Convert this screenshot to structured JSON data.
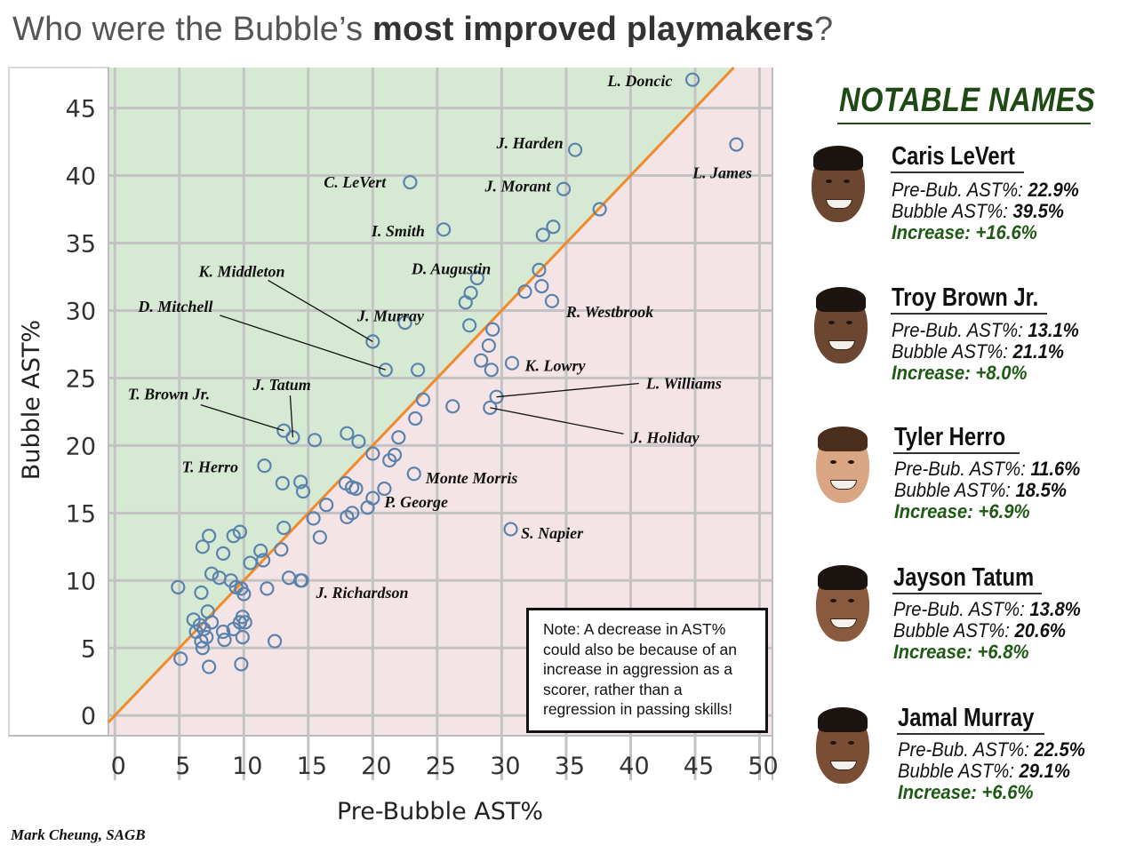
{
  "title": {
    "prefix": "Who were the Bubble’s ",
    "bold": "most improved playmakers",
    "suffix": "?"
  },
  "credit": "Mark Cheung, SAGB",
  "note": "Note: A decrease in AST% could also be because of an increase in aggression as a scorer, rather than a regression in passing skills!",
  "sidebar": {
    "title": "NOTABLE NAMES",
    "players": [
      {
        "name": "Caris LeVert",
        "pre_label": "Pre-Bub. AST%:",
        "pre": "22.9%",
        "bub_label": "Bubble AST%:",
        "bub": "39.5%",
        "inc_label": "Increase:",
        "inc": "+16.6%"
      },
      {
        "name": "Troy Brown Jr.",
        "pre_label": "Pre-Bub. AST%:",
        "pre": "13.1%",
        "bub_label": "Bubble AST%:",
        "bub": "21.1%",
        "inc_label": "Increase:",
        "inc": "+8.0%"
      },
      {
        "name": "Tyler Herro",
        "pre_label": "Pre-Bub. AST%:",
        "pre": "11.6%",
        "bub_label": "Bubble AST%:",
        "bub": "18.5%",
        "inc_label": "Increase:",
        "inc": "+6.9%"
      },
      {
        "name": "Jayson Tatum",
        "pre_label": "Pre-Bub. AST%:",
        "pre": "13.8%",
        "bub_label": "Bubble AST%:",
        "bub": "20.6%",
        "inc_label": "Increase:",
        "inc": "+6.8%"
      },
      {
        "name": "Jamal Murray",
        "pre_label": "Pre-Bub. AST%:",
        "pre": "22.5%",
        "bub_label": "Bubble AST%:",
        "bub": "29.1%",
        "inc_label": "Increase:",
        "inc": "+6.6%"
      }
    ]
  },
  "chart_data": {
    "type": "scatter",
    "xlabel": "Pre-Bubble AST%",
    "ylabel": "Bubble AST%",
    "xlim": [
      -0.5,
      51
    ],
    "ylim": [
      -1.5,
      48
    ],
    "xticks": [
      0,
      5,
      10,
      15,
      20,
      25,
      30,
      35,
      40,
      45,
      50
    ],
    "yticks": [
      0,
      5,
      10,
      15,
      20,
      25,
      30,
      35,
      40,
      45
    ],
    "grid": true,
    "reference_line": "y = x",
    "colors": {
      "above": "#d6ead3",
      "below": "#f5e4e6",
      "line": "#f08a2a",
      "marker": "#5a82ad",
      "grid": "#c3c3c3"
    },
    "points": [
      [
        44.8,
        47.1
      ],
      [
        48.2,
        42.3
      ],
      [
        35.7,
        41.9
      ],
      [
        34.8,
        39.0
      ],
      [
        37.6,
        37.5
      ],
      [
        22.9,
        39.5
      ],
      [
        25.5,
        36.0
      ],
      [
        34.0,
        36.2
      ],
      [
        33.2,
        35.6
      ],
      [
        32.9,
        33.0
      ],
      [
        28.1,
        32.4
      ],
      [
        27.6,
        31.3
      ],
      [
        27.2,
        30.6
      ],
      [
        31.8,
        31.4
      ],
      [
        33.1,
        31.8
      ],
      [
        33.9,
        30.7
      ],
      [
        22.5,
        29.1
      ],
      [
        27.5,
        28.9
      ],
      [
        29.3,
        28.6
      ],
      [
        29.0,
        27.4
      ],
      [
        20.0,
        27.7
      ],
      [
        28.4,
        26.3
      ],
      [
        30.8,
        26.1
      ],
      [
        29.2,
        25.6
      ],
      [
        21.0,
        25.6
      ],
      [
        23.5,
        25.6
      ],
      [
        23.9,
        23.4
      ],
      [
        26.2,
        22.9
      ],
      [
        29.6,
        23.6
      ],
      [
        29.1,
        22.8
      ],
      [
        23.3,
        22.0
      ],
      [
        13.1,
        21.1
      ],
      [
        13.8,
        20.6
      ],
      [
        15.5,
        20.4
      ],
      [
        18.0,
        20.9
      ],
      [
        18.9,
        20.3
      ],
      [
        22.0,
        20.6
      ],
      [
        20.0,
        19.4
      ],
      [
        21.7,
        19.3
      ],
      [
        21.3,
        18.9
      ],
      [
        11.6,
        18.5
      ],
      [
        23.2,
        17.9
      ],
      [
        14.4,
        17.3
      ],
      [
        13.0,
        17.2
      ],
      [
        14.6,
        16.6
      ],
      [
        17.9,
        17.2
      ],
      [
        18.4,
        16.9
      ],
      [
        18.7,
        16.8
      ],
      [
        20.9,
        16.8
      ],
      [
        20.0,
        16.1
      ],
      [
        16.4,
        15.6
      ],
      [
        19.6,
        15.4
      ],
      [
        18.4,
        15.0
      ],
      [
        18.0,
        14.7
      ],
      [
        15.4,
        14.6
      ],
      [
        13.1,
        13.9
      ],
      [
        15.9,
        13.2
      ],
      [
        30.7,
        13.8
      ],
      [
        9.7,
        13.6
      ],
      [
        9.2,
        13.3
      ],
      [
        7.3,
        13.3
      ],
      [
        6.8,
        12.5
      ],
      [
        8.4,
        12.0
      ],
      [
        11.3,
        12.2
      ],
      [
        12.9,
        12.3
      ],
      [
        10.5,
        11.3
      ],
      [
        11.5,
        11.5
      ],
      [
        7.5,
        10.5
      ],
      [
        8.1,
        10.2
      ],
      [
        9.0,
        10.0
      ],
      [
        13.5,
        10.2
      ],
      [
        14.5,
        10.0
      ],
      [
        14.4,
        10.0
      ],
      [
        4.9,
        9.5
      ],
      [
        6.7,
        9.1
      ],
      [
        9.4,
        9.5
      ],
      [
        10.0,
        9.0
      ],
      [
        9.8,
        9.4
      ],
      [
        11.8,
        9.4
      ],
      [
        6.1,
        7.1
      ],
      [
        6.6,
        6.7
      ],
      [
        6.3,
        6.2
      ],
      [
        7.2,
        7.7
      ],
      [
        7.5,
        6.9
      ],
      [
        6.9,
        6.4
      ],
      [
        8.4,
        6.2
      ],
      [
        9.2,
        6.4
      ],
      [
        9.7,
        6.9
      ],
      [
        9.9,
        7.3
      ],
      [
        10.1,
        6.9
      ],
      [
        6.7,
        5.5
      ],
      [
        7.1,
        5.8
      ],
      [
        6.8,
        5.0
      ],
      [
        8.5,
        5.6
      ],
      [
        9.9,
        5.8
      ],
      [
        12.4,
        5.5
      ],
      [
        5.1,
        4.2
      ],
      [
        7.3,
        3.6
      ],
      [
        9.8,
        3.8
      ]
    ],
    "labels": [
      {
        "text": "L. Doncic",
        "x": 44.8,
        "y": 47.1,
        "lx": 38.2,
        "ly": 47.0
      },
      {
        "text": "L. James",
        "x": 48.2,
        "y": 42.3,
        "lx": 44.8,
        "ly": 40.2
      },
      {
        "text": "J. Harden",
        "x": 35.7,
        "y": 41.9,
        "lx": 29.6,
        "ly": 42.4
      },
      {
        "text": "J. Morant",
        "x": 34.8,
        "y": 39.0,
        "lx": 28.7,
        "ly": 39.2
      },
      {
        "text": "C. LeVert",
        "x": 22.9,
        "y": 39.5,
        "lx": 16.2,
        "ly": 39.5
      },
      {
        "text": "I. Smith",
        "x": 25.5,
        "y": 36.0,
        "lx": 19.9,
        "ly": 35.9
      },
      {
        "text": "D. Augustin",
        "x": 28.1,
        "y": 32.4,
        "lx": 23.0,
        "ly": 33.1
      },
      {
        "text": "K. Middleton",
        "x": 20.0,
        "y": 27.7,
        "lx": 6.5,
        "ly": 32.9,
        "line": true
      },
      {
        "text": "D. Mitchell",
        "x": 21.0,
        "y": 25.6,
        "lx": 1.8,
        "ly": 30.3,
        "line": true
      },
      {
        "text": "J. Murray",
        "x": 22.5,
        "y": 29.1,
        "lx": 18.8,
        "ly": 29.6
      },
      {
        "text": "R. Westbrook",
        "x": 33.9,
        "y": 30.7,
        "lx": 35.0,
        "ly": 29.9
      },
      {
        "text": "K. Lowry",
        "x": 30.8,
        "y": 26.1,
        "lx": 31.8,
        "ly": 25.9
      },
      {
        "text": "L. Williams",
        "x": 29.6,
        "y": 23.6,
        "lx": 41.2,
        "ly": 24.6,
        "line": true
      },
      {
        "text": "J. Holiday",
        "x": 29.1,
        "y": 22.8,
        "lx": 40.0,
        "ly": 20.6,
        "line": true
      },
      {
        "text": "T. Brown Jr.",
        "x": 13.1,
        "y": 21.1,
        "lx": 1.0,
        "ly": 23.8,
        "line": true
      },
      {
        "text": "J. Tatum",
        "x": 13.8,
        "y": 20.6,
        "lx": 10.7,
        "ly": 24.5,
        "line": true
      },
      {
        "text": "T. Herro",
        "x": 11.6,
        "y": 18.5,
        "lx": 5.2,
        "ly": 18.4
      },
      {
        "text": "Monte Morris",
        "x": 23.2,
        "y": 17.9,
        "lx": 24.1,
        "ly": 17.6
      },
      {
        "text": "P. George",
        "x": 20.9,
        "y": 16.8,
        "lx": 20.9,
        "ly": 15.8
      },
      {
        "text": "S. Napier",
        "x": 30.7,
        "y": 13.8,
        "lx": 31.5,
        "ly": 13.5
      },
      {
        "text": "J. Richardson",
        "x": 14.4,
        "y": 10.0,
        "lx": 15.6,
        "ly": 9.1
      }
    ]
  }
}
